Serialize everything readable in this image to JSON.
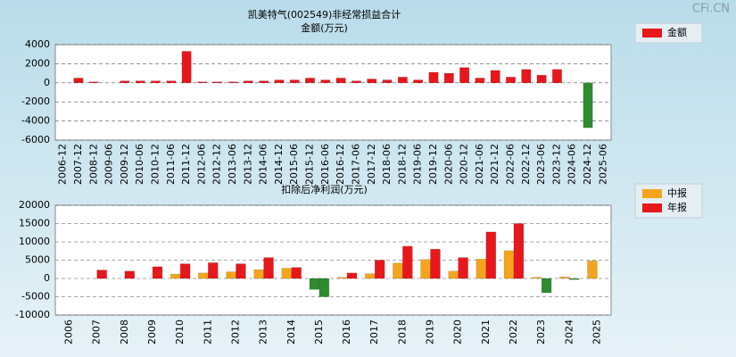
{
  "watermark": "CFi.CN",
  "chart_data": [
    {
      "type": "bar",
      "title": "凯美特气(002549)非经常损益合计",
      "subtitle": "金额(万元)",
      "categories": [
        "2006-12",
        "2007-12",
        "2008-12",
        "2009-06",
        "2009-12",
        "2010-06",
        "2010-12",
        "2011-06",
        "2011-12",
        "2012-06",
        "2012-12",
        "2013-06",
        "2013-12",
        "2014-06",
        "2014-12",
        "2015-06",
        "2015-12",
        "2016-06",
        "2016-12",
        "2017-06",
        "2017-12",
        "2018-06",
        "2018-12",
        "2019-06",
        "2019-12",
        "2020-06",
        "2020-12",
        "2021-06",
        "2021-12",
        "2022-06",
        "2022-12",
        "2023-06",
        "2023-12",
        "2024-06",
        "2024-12",
        "2025-06"
      ],
      "series": [
        {
          "name": "金额",
          "color": "#e8171c",
          "values": [
            0,
            500,
            100,
            0,
            200,
            200,
            200,
            200,
            3300,
            100,
            100,
            100,
            200,
            200,
            300,
            300,
            500,
            300,
            500,
            200,
            400,
            300,
            600,
            300,
            1100,
            1000,
            1600,
            500,
            1300,
            600,
            1400,
            800,
            1400,
            0,
            -4700,
            0
          ]
        }
      ],
      "negative_color": "#2e8b2e",
      "ylim": [
        -6000,
        4000
      ],
      "yticks": [
        4000,
        2000,
        0,
        -2000,
        -4000,
        -6000
      ],
      "grid": true,
      "legend": "right"
    },
    {
      "type": "bar",
      "title": "扣除后净利润(万元)",
      "categories": [
        "2006",
        "2007",
        "2008",
        "2009",
        "2010",
        "2011",
        "2012",
        "2013",
        "2014",
        "2015",
        "2016",
        "2017",
        "2018",
        "2019",
        "2020",
        "2021",
        "2022",
        "2023",
        "2024",
        "2025"
      ],
      "series": [
        {
          "name": "中报",
          "color": "#f5a51d",
          "values": [
            null,
            0,
            0,
            0,
            1200,
            1500,
            1800,
            2400,
            2800,
            -3000,
            300,
            1300,
            4200,
            5200,
            2000,
            5300,
            7600,
            300,
            400,
            4800
          ]
        },
        {
          "name": "年报",
          "color": "#e8171c",
          "values": [
            0,
            2300,
            2000,
            3200,
            4000,
            4300,
            4000,
            5700,
            3000,
            -5000,
            1500,
            5000,
            8800,
            8000,
            5700,
            12700,
            15000,
            -3900,
            -300,
            null
          ]
        }
      ],
      "negative_color": "#2e8b2e",
      "ylim": [
        -10000,
        20000
      ],
      "yticks": [
        20000,
        15000,
        10000,
        5000,
        0,
        -5000,
        -10000
      ],
      "grid": true,
      "legend": "right"
    }
  ]
}
